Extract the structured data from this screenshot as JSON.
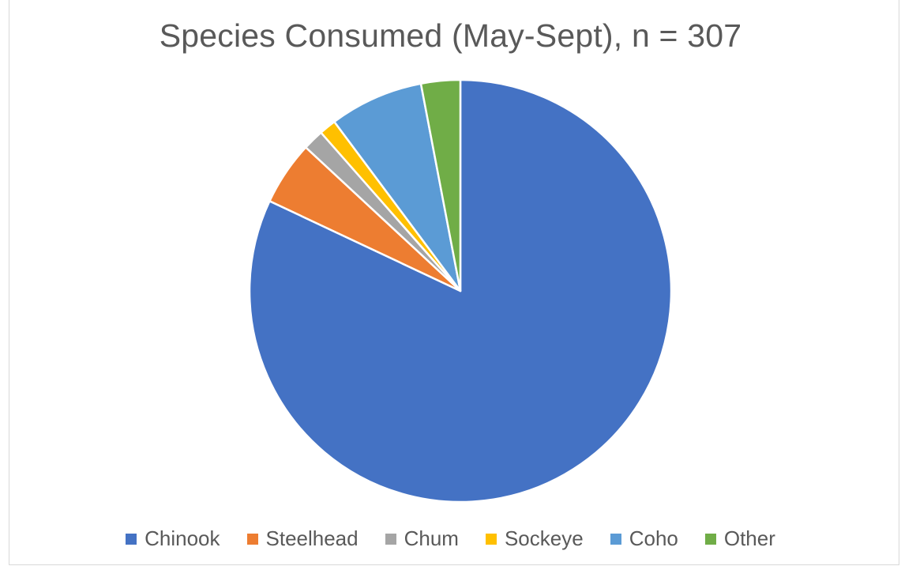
{
  "chart_data": {
    "type": "pie",
    "title": "Species Consumed (May-Sept), n = 307",
    "categories": [
      "Chinook",
      "Steelhead",
      "Chum",
      "Sockeye",
      "Coho",
      "Other"
    ],
    "values": [
      82.0,
      4.9,
      1.6,
      1.3,
      7.2,
      3.0
    ],
    "colors": [
      "#4472c4",
      "#ed7d31",
      "#a5a5a5",
      "#ffc000",
      "#5b9bd5",
      "#70ad47"
    ],
    "legend": "bottom",
    "start_angle_deg": 0,
    "direction": "clockwise"
  }
}
